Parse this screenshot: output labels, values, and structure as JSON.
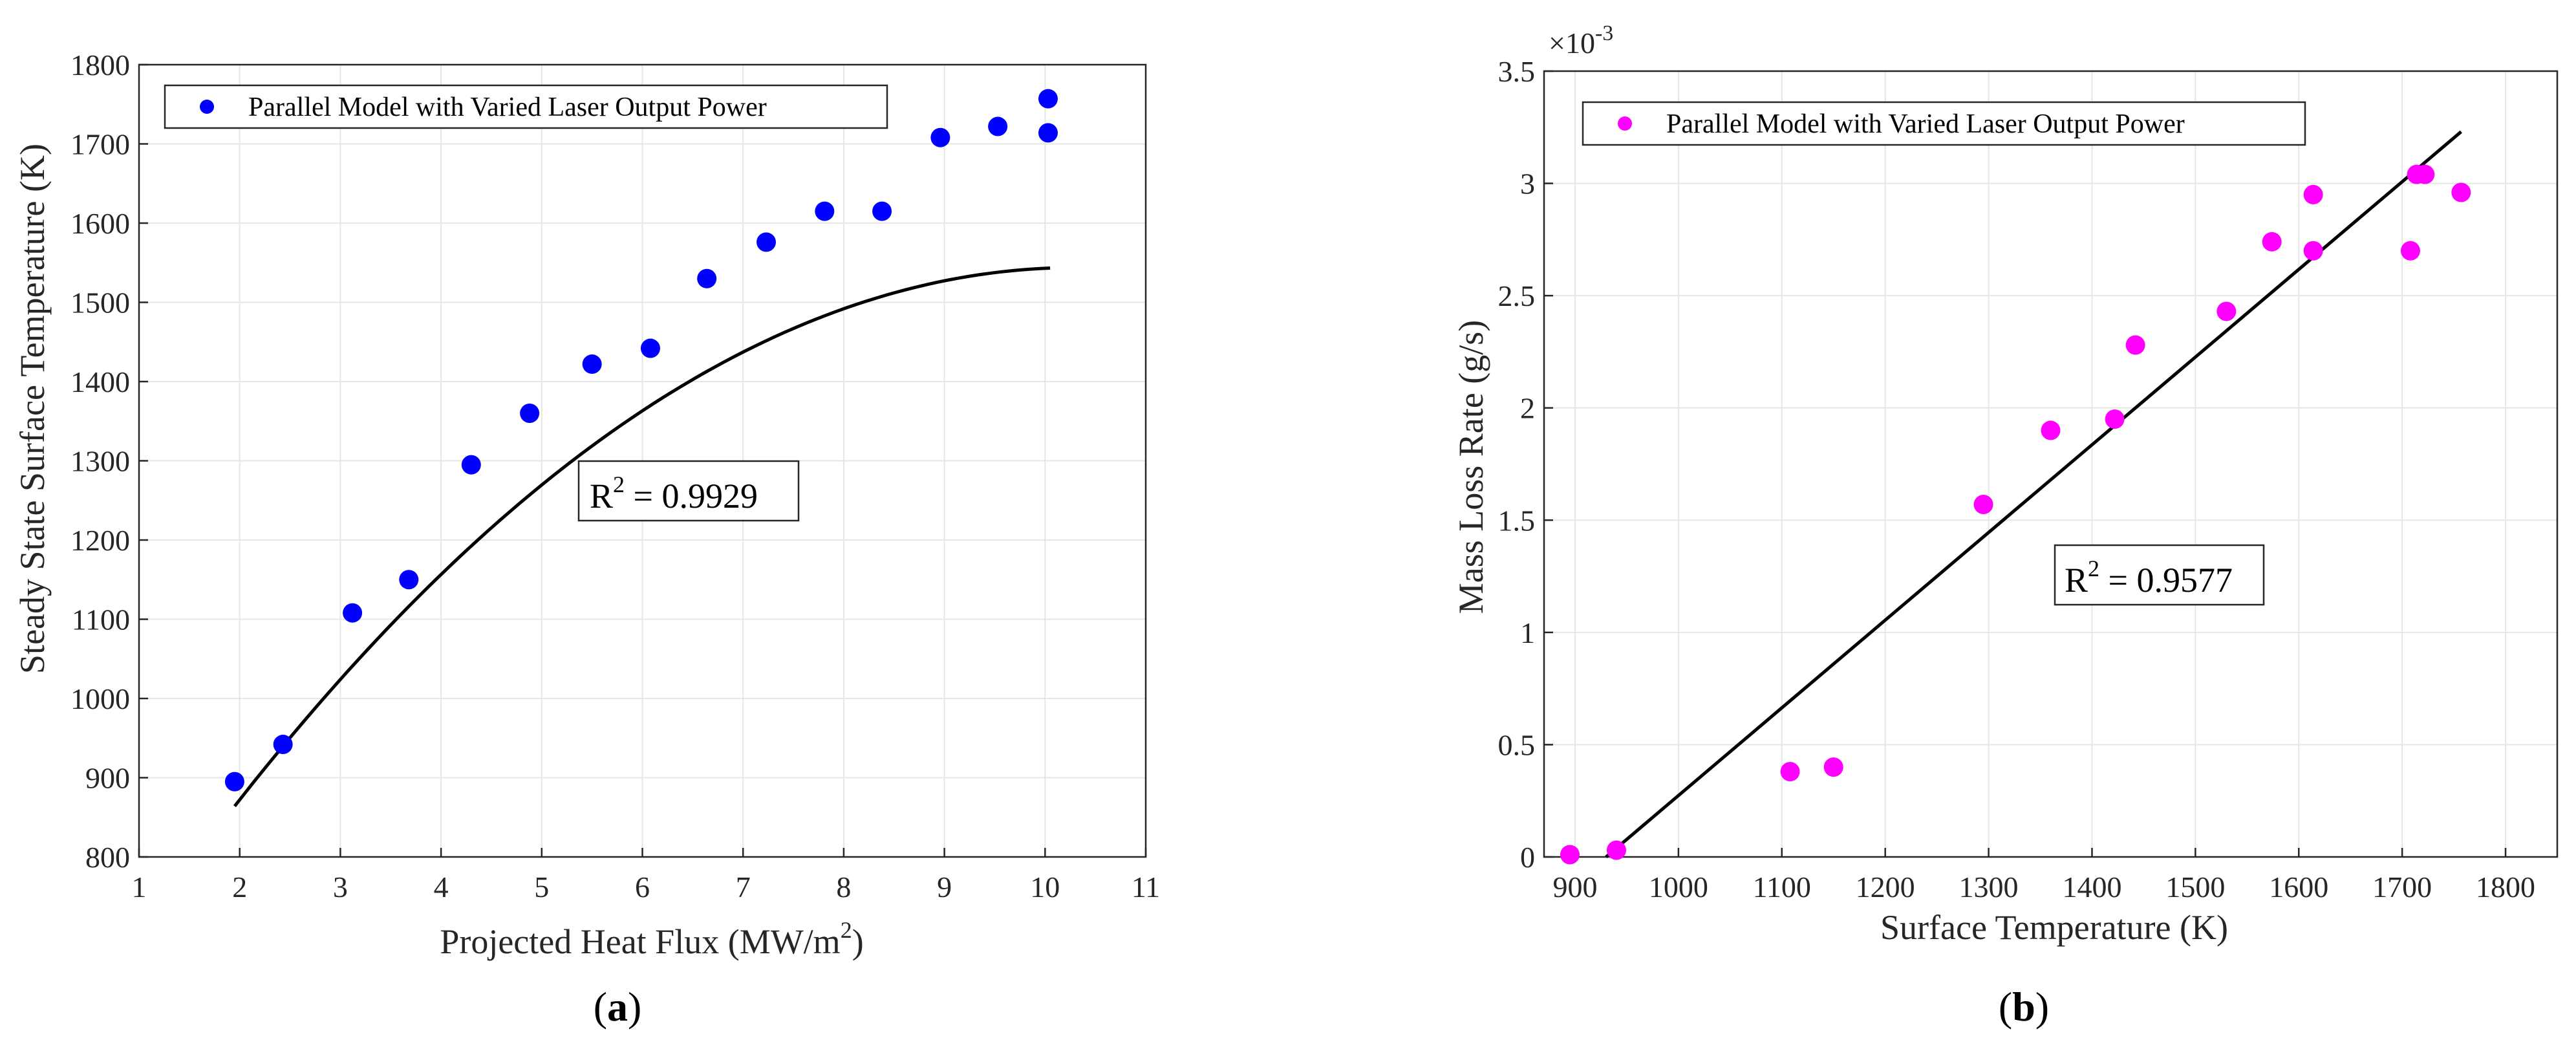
{
  "chart_data": [
    {
      "type": "scatter",
      "panel_label": "a",
      "xlabel_main": "Projected Heat Flux (MW/m",
      "xlabel_sup": "2",
      "xlabel_end": ")",
      "ylabel": "Steady State Surface Temperature (K)",
      "xlim": [
        1,
        11
      ],
      "ylim": [
        800,
        1800
      ],
      "xticks": [
        1,
        2,
        3,
        4,
        5,
        6,
        7,
        8,
        9,
        10,
        11
      ],
      "yticks": [
        800,
        900,
        1000,
        1100,
        1200,
        1300,
        1400,
        1500,
        1600,
        1700,
        1800
      ],
      "legend": "Parallel Model with Varied Laser Output Power",
      "legend_position": "top-left",
      "marker_color": "#0000ff",
      "series": [
        {
          "name": "Parallel Model with Varied Laser Output Power",
          "x": [
            1.95,
            2.43,
            3.12,
            3.68,
            4.3,
            4.88,
            5.5,
            6.08,
            6.64,
            7.23,
            7.81,
            8.38,
            8.96,
            9.53,
            10.03,
            10.03
          ],
          "y": [
            895,
            942,
            1108,
            1150,
            1295,
            1360,
            1422,
            1442,
            1530,
            1576,
            1615,
            1615,
            1708,
            1722,
            1757,
            1714
          ]
        }
      ],
      "fit": {
        "type": "quadratic",
        "x_range": [
          1.95,
          10.05
        ],
        "coef": [
          510,
          200.5,
          -9.72
        ]
      },
      "r2_base": "R",
      "r2_sup": "2",
      "r2_value": " = 0.9929"
    },
    {
      "type": "scatter",
      "panel_label": "b",
      "xlabel": "Surface Temperature (K)",
      "ylabel": "Mass Loss Rate (g/s)",
      "xlim": [
        870,
        1850
      ],
      "ylim": [
        0,
        3.5
      ],
      "xticks": [
        900,
        1000,
        1100,
        1200,
        1300,
        1400,
        1500,
        1600,
        1700,
        1800
      ],
      "yticks": [
        0,
        0.5,
        1,
        1.5,
        2,
        2.5,
        3,
        3.5
      ],
      "ytick_labels": [
        "0",
        "0.5",
        "1",
        "1.5",
        "2",
        "2.5",
        "3",
        "3.5"
      ],
      "exponent_base": "×10",
      "exponent_power": "-3",
      "legend": "Parallel Model with Varied Laser Output Power",
      "legend_position": "top-left",
      "marker_color": "#ff00ff",
      "series": [
        {
          "name": "Parallel Model with Varied Laser Output Power",
          "x": [
            895,
            940,
            1108,
            1150,
            1295,
            1360,
            1422,
            1442,
            1530,
            1574,
            1614,
            1614,
            1708,
            1714,
            1722,
            1757
          ],
          "y": [
            0.01,
            0.03,
            0.38,
            0.4,
            1.57,
            1.9,
            1.95,
            2.28,
            2.43,
            2.74,
            2.95,
            2.7,
            2.7,
            3.04,
            3.04,
            2.96
          ]
        }
      ],
      "fit": {
        "type": "linear",
        "x_range": [
          930,
          1757
        ],
        "points": [
          [
            930,
            0.0
          ],
          [
            1757,
            3.23
          ]
        ]
      },
      "r2_base": "R",
      "r2_sup": "2",
      "r2_value": " = 0.9577"
    }
  ]
}
